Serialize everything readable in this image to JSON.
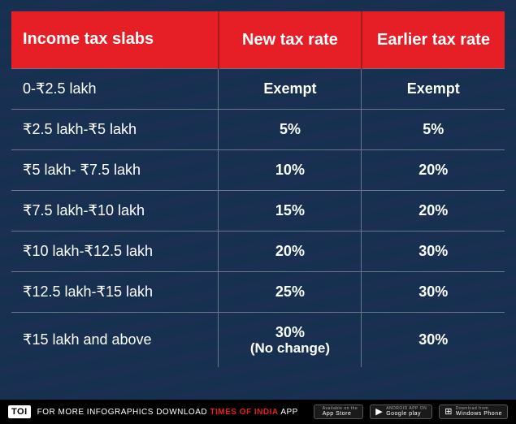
{
  "table": {
    "headers": [
      "Income tax slabs",
      "New tax rate",
      "Earlier tax rate"
    ],
    "rows": [
      {
        "slab": "0-₹2.5 lakh",
        "new": "Exempt",
        "earlier": "Exempt"
      },
      {
        "slab": "₹2.5 lakh-₹5 lakh",
        "new": "5%",
        "earlier": "5%"
      },
      {
        "slab": "₹5 lakh- ₹7.5 lakh",
        "new": "10%",
        "earlier": "20%"
      },
      {
        "slab": "₹7.5 lakh-₹10 lakh",
        "new": "15%",
        "earlier": "20%"
      },
      {
        "slab": "₹10 lakh-₹12.5 lakh",
        "new": "20%",
        "earlier": "30%"
      },
      {
        "slab": "₹12.5 lakh-₹15 lakh",
        "new": "25%",
        "earlier": "30%"
      },
      {
        "slab": "₹15 lakh and above",
        "new": "30%",
        "new_sub": "(No change)",
        "earlier": "30%"
      }
    ],
    "colors": {
      "header_bg": "#e61e26",
      "header_divider": "#a81a1f",
      "body_text": "#ffffff",
      "grid_line": "rgba(255,255,255,0.35)",
      "bg_stripe_a": "#1a2f52",
      "bg_stripe_b": "#163050"
    },
    "typography": {
      "header_fontsize": 20,
      "body_fontsize": 18,
      "font_family": "Arial"
    }
  },
  "footer": {
    "logo": "TOI",
    "text_pre": "FOR MORE  INFOGRAPHICS DOWNLOAD",
    "brand": "TIMES OF INDIA",
    "text_post": "APP",
    "stores": [
      {
        "top": "Available on the",
        "name": "App Store",
        "icon": ""
      },
      {
        "top": "ANDROID APP ON",
        "name": "Google play",
        "icon": "▶"
      },
      {
        "top": "Download from",
        "name": "Windows Phone",
        "icon": "⊞"
      }
    ]
  }
}
